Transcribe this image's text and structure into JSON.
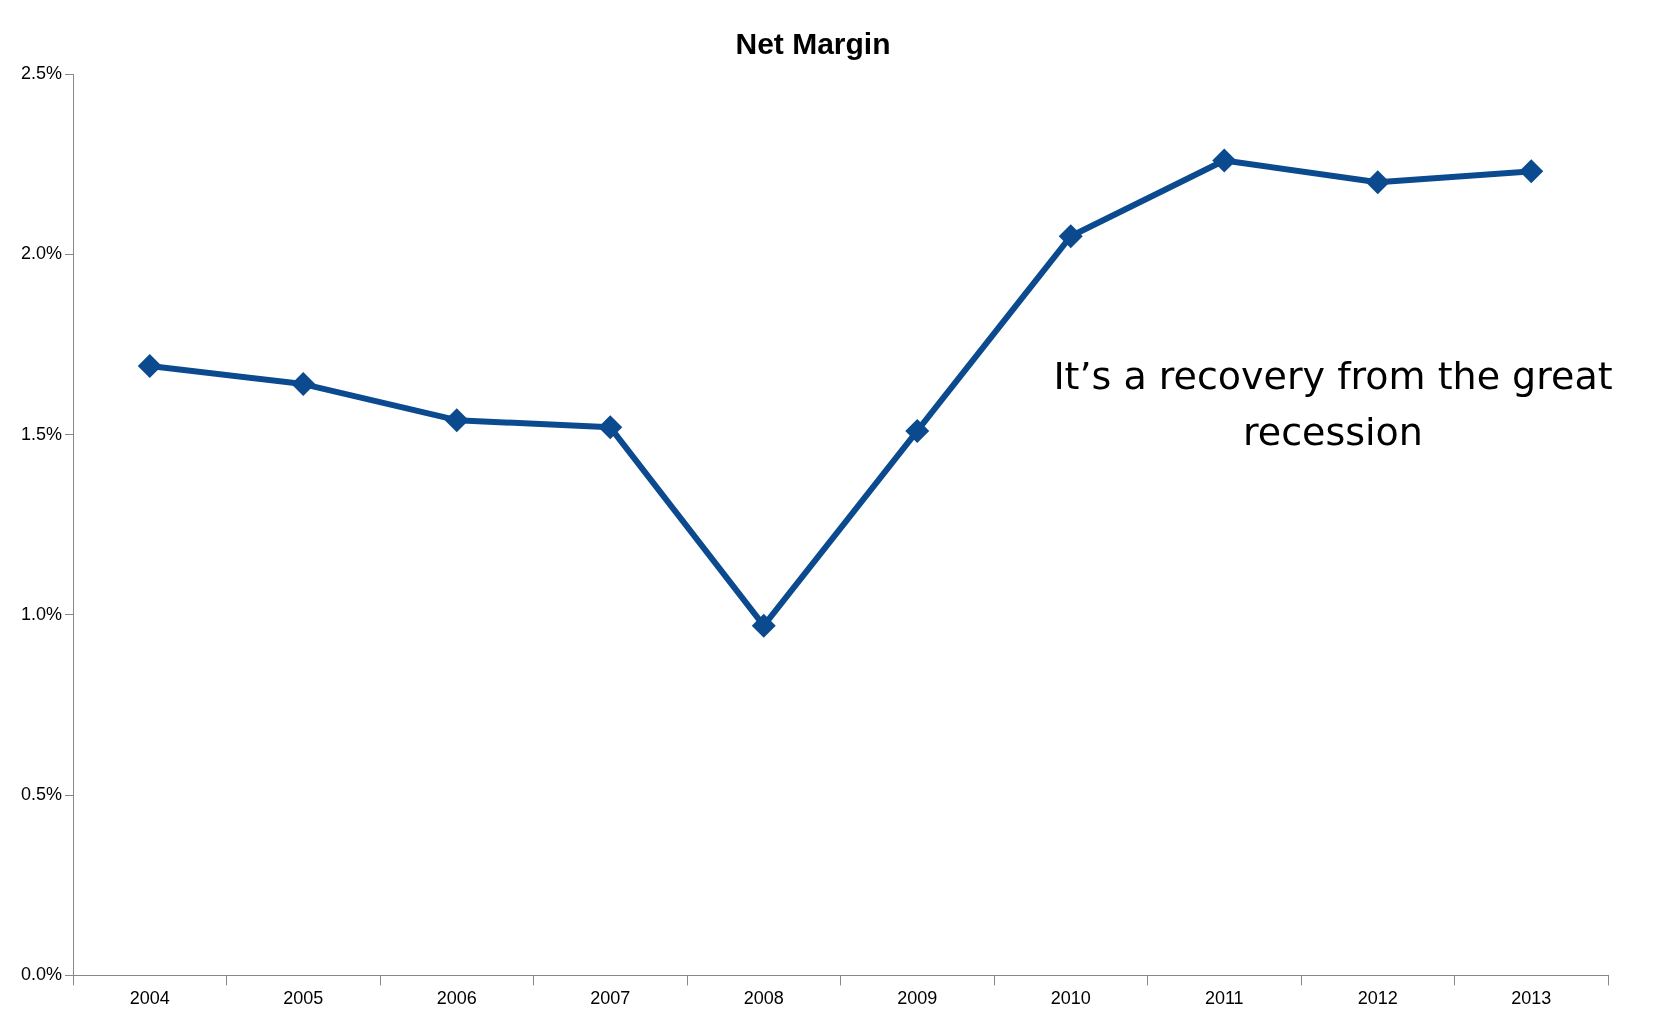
{
  "chart_data": {
    "type": "line",
    "title": "Net Margin",
    "categories": [
      "2004",
      "2005",
      "2006",
      "2007",
      "2008",
      "2009",
      "2010",
      "2011",
      "2012",
      "2013"
    ],
    "series": [
      {
        "color": "#0b4a8f",
        "values": [
          1.69,
          1.64,
          1.54,
          1.52,
          0.97,
          1.51,
          2.05,
          2.26,
          2.2,
          2.23
        ]
      }
    ],
    "ylim": [
      0,
      2.5
    ],
    "yticks": [
      {
        "value": 0,
        "label": "0.0%"
      },
      {
        "value": 0.5,
        "label": "0.5%"
      },
      {
        "value": 1,
        "label": "1.0%"
      },
      {
        "value": 1.5,
        "label": "1.5%"
      },
      {
        "value": 2,
        "label": "2.0%"
      },
      {
        "value": 2.5,
        "label": "2.5%"
      }
    ],
    "annotations": [
      "It’s a recovery from the great recession"
    ],
    "grid": false,
    "legend": false,
    "marker": "diamond",
    "line_style": "solid"
  }
}
